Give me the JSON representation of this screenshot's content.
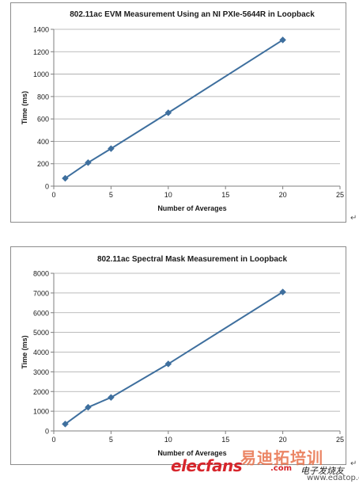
{
  "chart_data": [
    {
      "type": "line",
      "title": "802.11ac EVM Measurement Using an NI PXIe-5644R in Loopback",
      "xlabel": "Number of Averages",
      "ylabel": "Time (ms)",
      "xlim": [
        0,
        25
      ],
      "ylim": [
        0,
        1400
      ],
      "xticks": [
        0,
        5,
        10,
        15,
        20,
        25
      ],
      "yticks": [
        0,
        200,
        400,
        600,
        800,
        1000,
        1200,
        1400
      ],
      "grid": "horizontal",
      "legend": "none",
      "series": [
        {
          "color": "#3e6f9e",
          "marker": "diamond",
          "x": [
            1,
            3,
            5,
            10,
            20
          ],
          "values": [
            70,
            210,
            335,
            655,
            1305
          ]
        }
      ]
    },
    {
      "type": "line",
      "title": "802.11ac Spectral Mask Measurement in Loopback",
      "xlabel": "Number of Averages",
      "ylabel": "Time (ms)",
      "xlim": [
        0,
        25
      ],
      "ylim": [
        0,
        8000
      ],
      "xticks": [
        0,
        5,
        10,
        15,
        20,
        25
      ],
      "yticks": [
        0,
        1000,
        2000,
        3000,
        4000,
        5000,
        6000,
        7000,
        8000
      ],
      "grid": "horizontal",
      "legend": "none",
      "series": [
        {
          "color": "#3e6f9e",
          "marker": "diamond",
          "x": [
            1,
            3,
            5,
            10,
            20
          ],
          "values": [
            350,
            1200,
            1700,
            3400,
            7050
          ]
        }
      ]
    }
  ],
  "para_mark": "↵",
  "watermark": {
    "brand": "elecfans",
    "dotcom": ".com",
    "cn_top": "易迪拓培训",
    "cn_bottom": "电子发烧友",
    "url": "www.edatop.com"
  }
}
